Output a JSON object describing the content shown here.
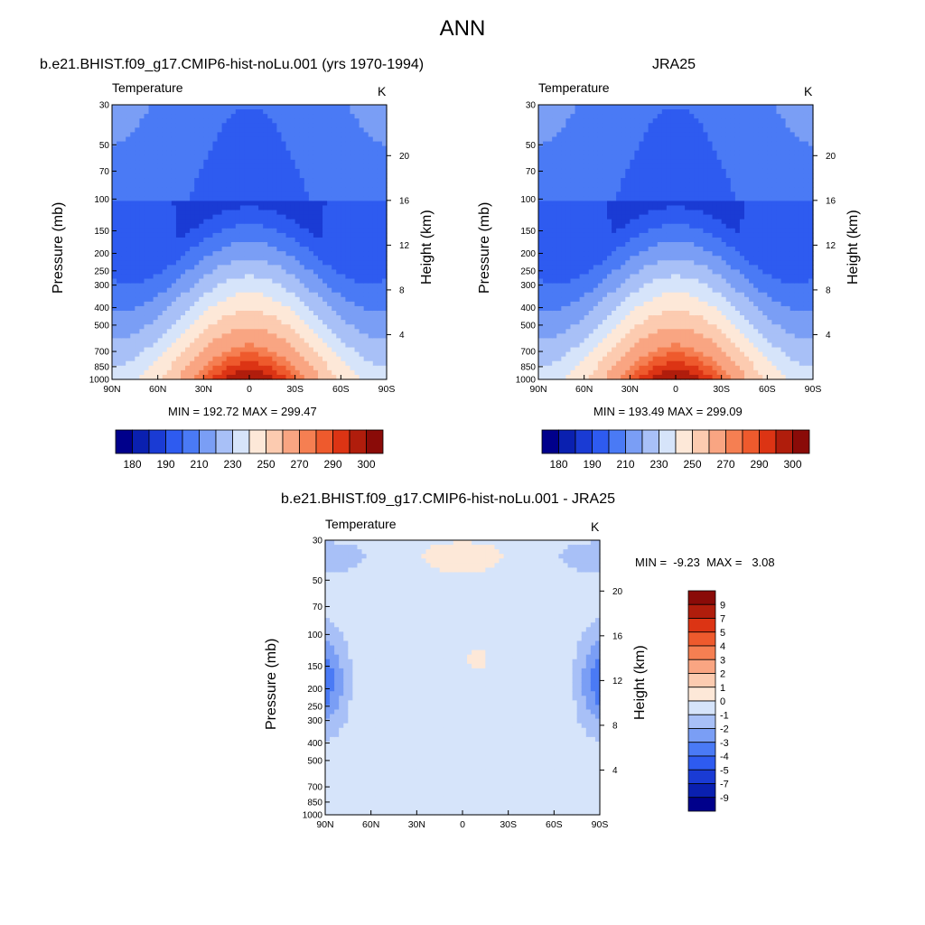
{
  "figure": {
    "title": "ANN"
  },
  "colors": {
    "temp_palette": [
      "#00008B",
      "#0A20B0",
      "#1A3BD4",
      "#2E5BF0",
      "#4A7AF5",
      "#7A9EF5",
      "#A8C0F7",
      "#D6E4FA",
      "#FDE8D8",
      "#FCCBB0",
      "#F9A582",
      "#F57F52",
      "#EE5A2D",
      "#DC3414",
      "#B01D0C",
      "#8A0B08"
    ],
    "diff_palette": [
      "#00008B",
      "#0A20B0",
      "#1A3BD4",
      "#2E5BF0",
      "#4A7AF5",
      "#7A9EF5",
      "#A8C0F7",
      "#D6E4FA",
      "#FDE8D8",
      "#FCCBB0",
      "#F9A582",
      "#F57F52",
      "#EE5A2D",
      "#DC3414",
      "#B01D0C",
      "#8A0B08"
    ]
  },
  "panels": [
    {
      "title": "b.e21.BHIST.f09_g17.CMIP6-hist-noLu.001 (yrs 1970-1994)",
      "variable": "Temperature",
      "units": "K",
      "ylabel": "Pressure (mb)",
      "y2label": "Height (km)",
      "minmax": "MIN = 192.72  MAX = 299.47"
    },
    {
      "title": "JRA25",
      "variable": "Temperature",
      "units": "K",
      "ylabel": "Pressure (mb)",
      "y2label": "Height (km)",
      "minmax": "MIN = 193.49  MAX = 299.09"
    },
    {
      "title": "b.e21.BHIST.f09_g17.CMIP6-hist-noLu.001 - JRA25",
      "variable": "Temperature",
      "units": "K",
      "ylabel": "Pressure (mb)",
      "y2label": "Height (km)",
      "minmax": "MIN =  -9.23  MAX =   3.08"
    }
  ],
  "chart_data": [
    {
      "type": "heatmap",
      "title": "b.e21.BHIST.f09_g17.CMIP6-hist-noLu.001 (yrs 1970-1994)",
      "variable": "Temperature",
      "units": "K",
      "x_ticks": [
        "90N",
        "60N",
        "30N",
        "0",
        "30S",
        "60S",
        "90S"
      ],
      "y_ticks": [
        "30",
        "50",
        "70",
        "100",
        "150",
        "200",
        "250",
        "300",
        "400",
        "500",
        "700",
        "850",
        "1000"
      ],
      "y2_ticks": [
        "20",
        "16",
        "12",
        "8",
        "4"
      ],
      "ylabel": "Pressure (mb)",
      "y2label": "Height (km)",
      "min": 192.72,
      "max": 299.47,
      "colorbar_labels": [
        "180",
        "190",
        "210",
        "230",
        "250",
        "270",
        "290",
        "300"
      ]
    },
    {
      "type": "heatmap",
      "title": "JRA25",
      "variable": "Temperature",
      "units": "K",
      "x_ticks": [
        "90N",
        "60N",
        "30N",
        "0",
        "30S",
        "60S",
        "90S"
      ],
      "y_ticks": [
        "30",
        "50",
        "70",
        "100",
        "150",
        "200",
        "250",
        "300",
        "400",
        "500",
        "700",
        "850",
        "1000"
      ],
      "y2_ticks": [
        "20",
        "16",
        "12",
        "8",
        "4"
      ],
      "ylabel": "Pressure (mb)",
      "y2label": "Height (km)",
      "min": 193.49,
      "max": 299.09,
      "colorbar_labels": [
        "180",
        "190",
        "210",
        "230",
        "250",
        "270",
        "290",
        "300"
      ]
    },
    {
      "type": "heatmap",
      "title": "b.e21.BHIST.f09_g17.CMIP6-hist-noLu.001 - JRA25",
      "variable": "Temperature",
      "units": "K",
      "x_ticks": [
        "90N",
        "60N",
        "30N",
        "0",
        "30S",
        "60S",
        "90S"
      ],
      "y_ticks": [
        "30",
        "50",
        "70",
        "100",
        "150",
        "200",
        "250",
        "300",
        "400",
        "500",
        "700",
        "850",
        "1000"
      ],
      "y2_ticks": [
        "20",
        "16",
        "12",
        "8",
        "4"
      ],
      "ylabel": "Pressure (mb)",
      "y2label": "Height (km)",
      "min": -9.23,
      "max": 3.08,
      "colorbar_labels": [
        "9",
        "7",
        "5",
        "4",
        "3",
        "2",
        "1",
        "0",
        "-1",
        "-2",
        "-3",
        "-4",
        "-5",
        "-7",
        "-9"
      ]
    }
  ]
}
